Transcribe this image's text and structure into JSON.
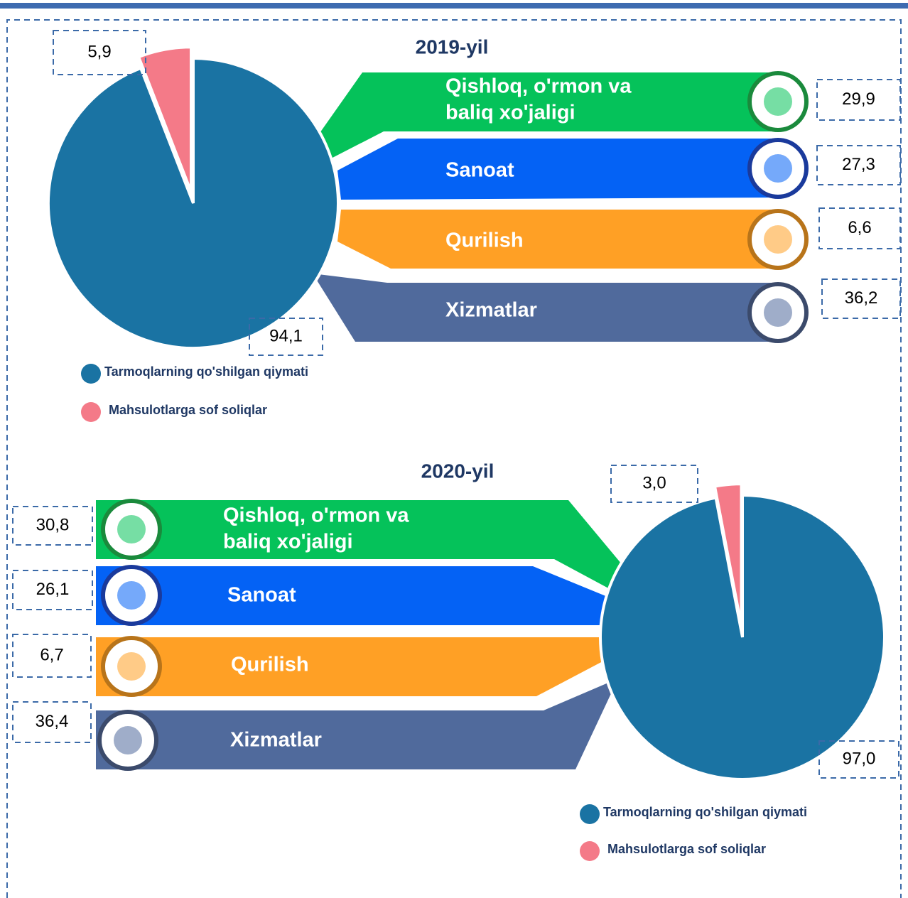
{
  "chart_data": [
    {
      "type": "pie",
      "title": "2019-yil",
      "categories": [
        "Tarmoqlarning qo'shilgan qiymati",
        "Mahsulotlarga sof soliqlar"
      ],
      "values": [
        94.1,
        5.9
      ],
      "value_labels": [
        "94,1",
        "5,9"
      ],
      "colors": [
        "#1a73a3",
        "#f47a88"
      ],
      "sectors": {
        "categories": [
          [
            "Qishloq, o'rmon va",
            "baliq xo'jaligi"
          ],
          [
            "Sanoat"
          ],
          [
            "Qurilish"
          ],
          [
            "Xizmatlar"
          ]
        ],
        "values": [
          29.9,
          27.3,
          6.6,
          36.2
        ],
        "value_labels": [
          "29,9",
          "27,3",
          "6,6",
          "36,2"
        ],
        "colors": [
          "#05c25a",
          "#0462f5",
          "#ffa025",
          "#506a9c"
        ]
      }
    },
    {
      "type": "pie",
      "title": "2020-yil",
      "categories": [
        "Tarmoqlarning qo'shilgan qiymati",
        "Mahsulotlarga sof soliqlar"
      ],
      "values": [
        97.0,
        3.0
      ],
      "value_labels": [
        "97,0",
        "3,0"
      ],
      "colors": [
        "#1a73a3",
        "#f47a88"
      ],
      "sectors": {
        "categories": [
          [
            "Qishloq, o'rmon va",
            "baliq xo'jaligi"
          ],
          [
            "Sanoat"
          ],
          [
            "Qurilish"
          ],
          [
            "Xizmatlar"
          ]
        ],
        "values": [
          30.8,
          26.1,
          6.7,
          36.4
        ],
        "value_labels": [
          "30,8",
          "26,1",
          "6,7",
          "36,4"
        ],
        "colors": [
          "#05c25a",
          "#0462f5",
          "#ffa025",
          "#506a9c"
        ]
      }
    }
  ]
}
